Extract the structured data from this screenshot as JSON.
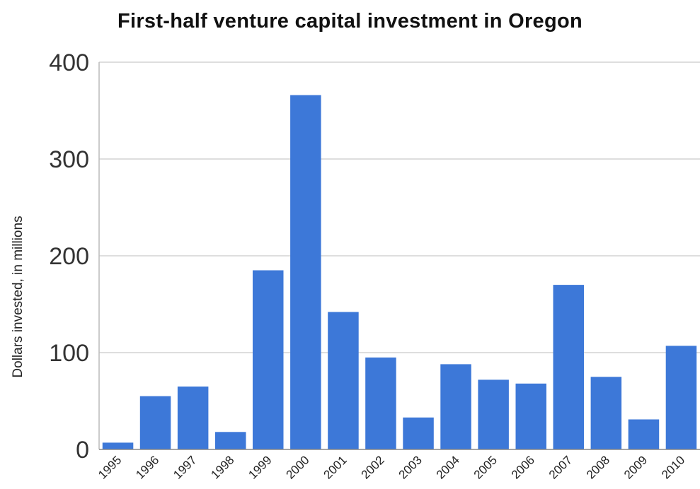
{
  "chart_data": {
    "type": "bar",
    "title": "First-half venture capital investment in Oregon",
    "xlabel": "",
    "ylabel": "Dollars invested, in millions",
    "categories": [
      "1995",
      "1996",
      "1997",
      "1998",
      "1999",
      "2000",
      "2001",
      "2002",
      "2003",
      "2004",
      "2005",
      "2006",
      "2007",
      "2008",
      "2009",
      "2010"
    ],
    "values": [
      7,
      55,
      65,
      18,
      185,
      366,
      142,
      95,
      33,
      88,
      72,
      68,
      170,
      75,
      31,
      107
    ],
    "ylim": [
      0,
      400
    ],
    "yticks": [
      0,
      100,
      200,
      300,
      400
    ],
    "grid": true,
    "legend": "none",
    "colors": {
      "bar": "#3d78d8",
      "grid": "#d4d4d4",
      "text": "#222222"
    }
  }
}
